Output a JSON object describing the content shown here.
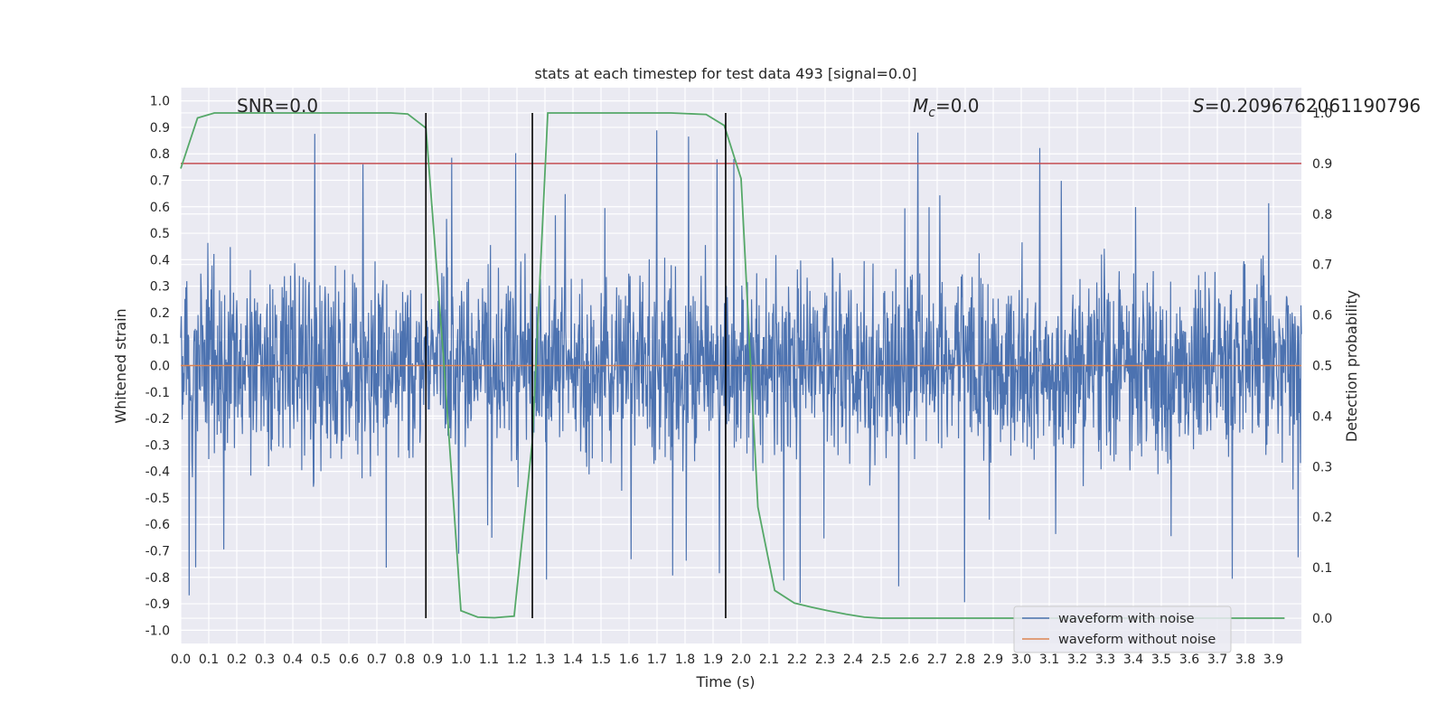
{
  "chart_data": {
    "type": "line",
    "title": "stats at each timestep for test data 493 [signal=0.0]",
    "xlabel": "Time (s)",
    "ylabel": "Whitened strain",
    "y2label": "Detection probability",
    "xlim": [
      0.0,
      4.0
    ],
    "ylim": [
      -1.05,
      1.05
    ],
    "y2lim": [
      -0.05,
      1.05
    ],
    "xticks": [
      "0.0",
      "0.1",
      "0.2",
      "0.3",
      "0.4",
      "0.5",
      "0.6",
      "0.7",
      "0.8",
      "0.9",
      "1.0",
      "1.1",
      "1.2",
      "1.3",
      "1.4",
      "1.5",
      "1.6",
      "1.7",
      "1.8",
      "1.9",
      "2.0",
      "2.1",
      "2.2",
      "2.3",
      "2.4",
      "2.5",
      "2.6",
      "2.7",
      "2.8",
      "2.9",
      "3.0",
      "3.1",
      "3.2",
      "3.3",
      "3.4",
      "3.5",
      "3.6",
      "3.7",
      "3.8",
      "3.9"
    ],
    "yticks": [
      "1.0",
      "0.9",
      "0.8",
      "0.7",
      "0.6",
      "0.5",
      "0.4",
      "0.3",
      "0.2",
      "0.1",
      "0.0",
      "-0.1",
      "-0.2",
      "-0.3",
      "-0.4",
      "-0.5",
      "-0.6",
      "-0.7",
      "-0.8",
      "-0.9",
      "-1.0"
    ],
    "y2ticks": [
      "1.0",
      "0.9",
      "0.8",
      "0.7",
      "0.6",
      "0.5",
      "0.4",
      "0.3",
      "0.2",
      "0.1",
      "0.0"
    ],
    "grid": true,
    "legend_position": "lower-right",
    "annotations": {
      "snr": "SNR=0.0",
      "mc_symbol": "M",
      "mc_sub": "c",
      "mc_value": "=0.0",
      "s_symbol": "S",
      "s_value": "=0.2096762061190796"
    },
    "threshold": 0.9,
    "event_lines_x": [
      0.875,
      1.255,
      1.945
    ],
    "series": [
      {
        "name": "waveform with noise",
        "color": "#4c72b0",
        "axis": "left",
        "amplitude_envelope": 0.45,
        "peak_min": -0.93,
        "peak_max": 1.0
      },
      {
        "name": "waveform without noise",
        "color": "#dd8452",
        "axis": "left",
        "x": [
          0.0,
          4.0
        ],
        "y": [
          0.0,
          0.0
        ]
      },
      {
        "name": "Detection probability",
        "color": "#55a868",
        "axis": "right",
        "x": [
          0.0,
          0.06,
          0.12,
          0.25,
          0.5,
          0.75,
          0.81,
          0.875,
          0.94,
          1.0,
          1.06,
          1.12,
          1.19,
          1.255,
          1.31,
          1.375,
          1.5,
          1.75,
          1.875,
          1.94,
          2.0,
          2.06,
          2.12,
          2.19,
          2.25,
          2.31,
          2.375,
          2.44,
          2.5,
          3.0,
          3.5,
          3.75,
          3.94
        ],
        "y": [
          0.89,
          0.99,
          1.0,
          1.0,
          1.0,
          1.0,
          0.998,
          0.97,
          0.5,
          0.015,
          0.002,
          0.001,
          0.004,
          0.35,
          1.0,
          1.0,
          1.0,
          1.0,
          0.997,
          0.975,
          0.87,
          0.22,
          0.055,
          0.03,
          0.022,
          0.015,
          0.008,
          0.002,
          0.0,
          0.0,
          0.0,
          0.0,
          0.0
        ]
      }
    ]
  }
}
